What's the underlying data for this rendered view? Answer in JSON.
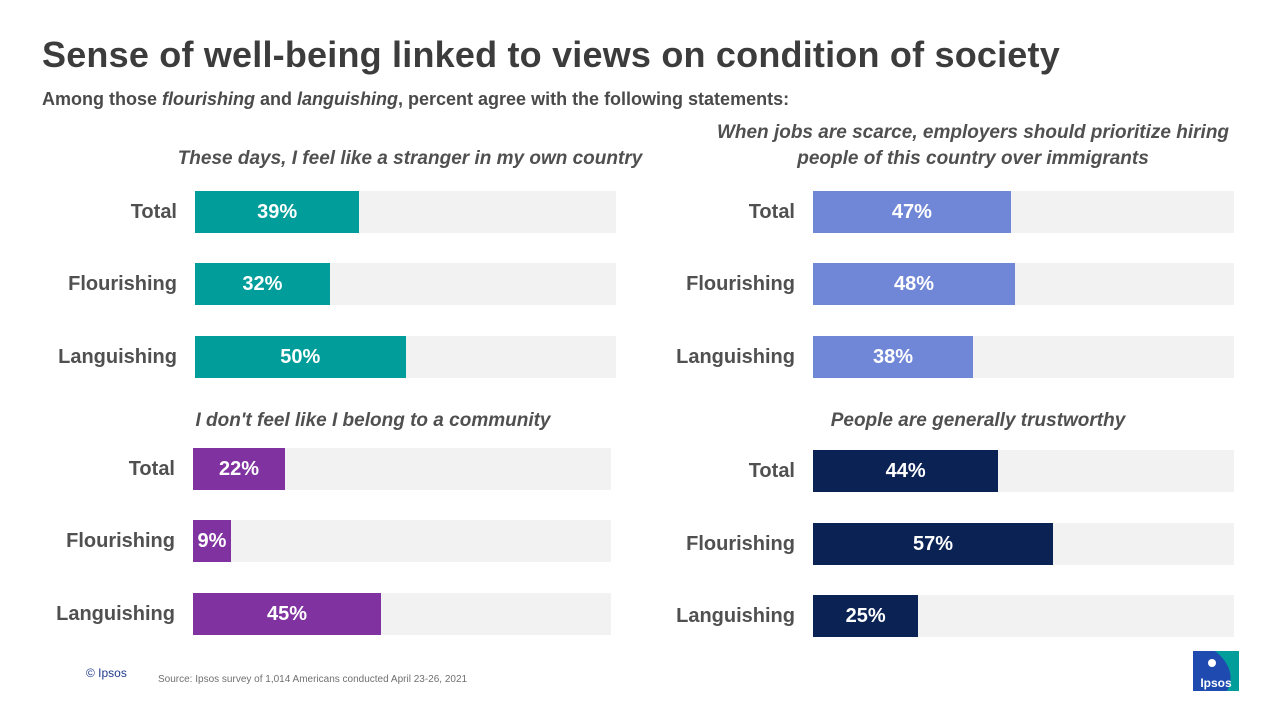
{
  "title": "Sense of well-being linked to views on condition of society",
  "subtitle": {
    "part1": "Among those ",
    "em1": "flourishing",
    "part2": " and ",
    "em2": "languishing",
    "part3": ", percent agree with the following statements:"
  },
  "chart_data": [
    {
      "type": "bar",
      "title": "These days, I feel like a stranger in my own country",
      "categories": [
        "Total",
        "Flourishing",
        "Languishing"
      ],
      "values": [
        39,
        32,
        50
      ],
      "value_labels": [
        "39%",
        "32%",
        "50%"
      ],
      "color": "#009d9a",
      "xlim": [
        0,
        100
      ]
    },
    {
      "type": "bar",
      "title": "When jobs are scarce, employers should prioritize hiring people of this country over immigrants",
      "categories": [
        "Total",
        "Flourishing",
        "Languishing"
      ],
      "values": [
        47,
        48,
        38
      ],
      "value_labels": [
        "47%",
        "48%",
        "38%"
      ],
      "color": "#7086d6",
      "xlim": [
        0,
        100
      ]
    },
    {
      "type": "bar",
      "title": "I don't feel like I belong to a community",
      "categories": [
        "Total",
        "Flourishing",
        "Languishing"
      ],
      "values": [
        22,
        9,
        45
      ],
      "value_labels": [
        "22%",
        "9%",
        "45%"
      ],
      "color": "#8032a0",
      "xlim": [
        0,
        100
      ]
    },
    {
      "type": "bar",
      "title": "People are generally trustworthy",
      "categories": [
        "Total",
        "Flourishing",
        "Languishing"
      ],
      "values": [
        44,
        57,
        25
      ],
      "value_labels": [
        "44%",
        "57%",
        "25%"
      ],
      "color": "#0b2255",
      "xlim": [
        0,
        100
      ]
    }
  ],
  "footer": {
    "copyright": "© Ipsos",
    "source": "Source: Ipsos survey of 1,014 Americans conducted April 23-26, 2021",
    "logo_text": "Ipsos"
  },
  "colors": {
    "logo_blue": "#1f4bb0",
    "logo_teal": "#009d9a"
  }
}
